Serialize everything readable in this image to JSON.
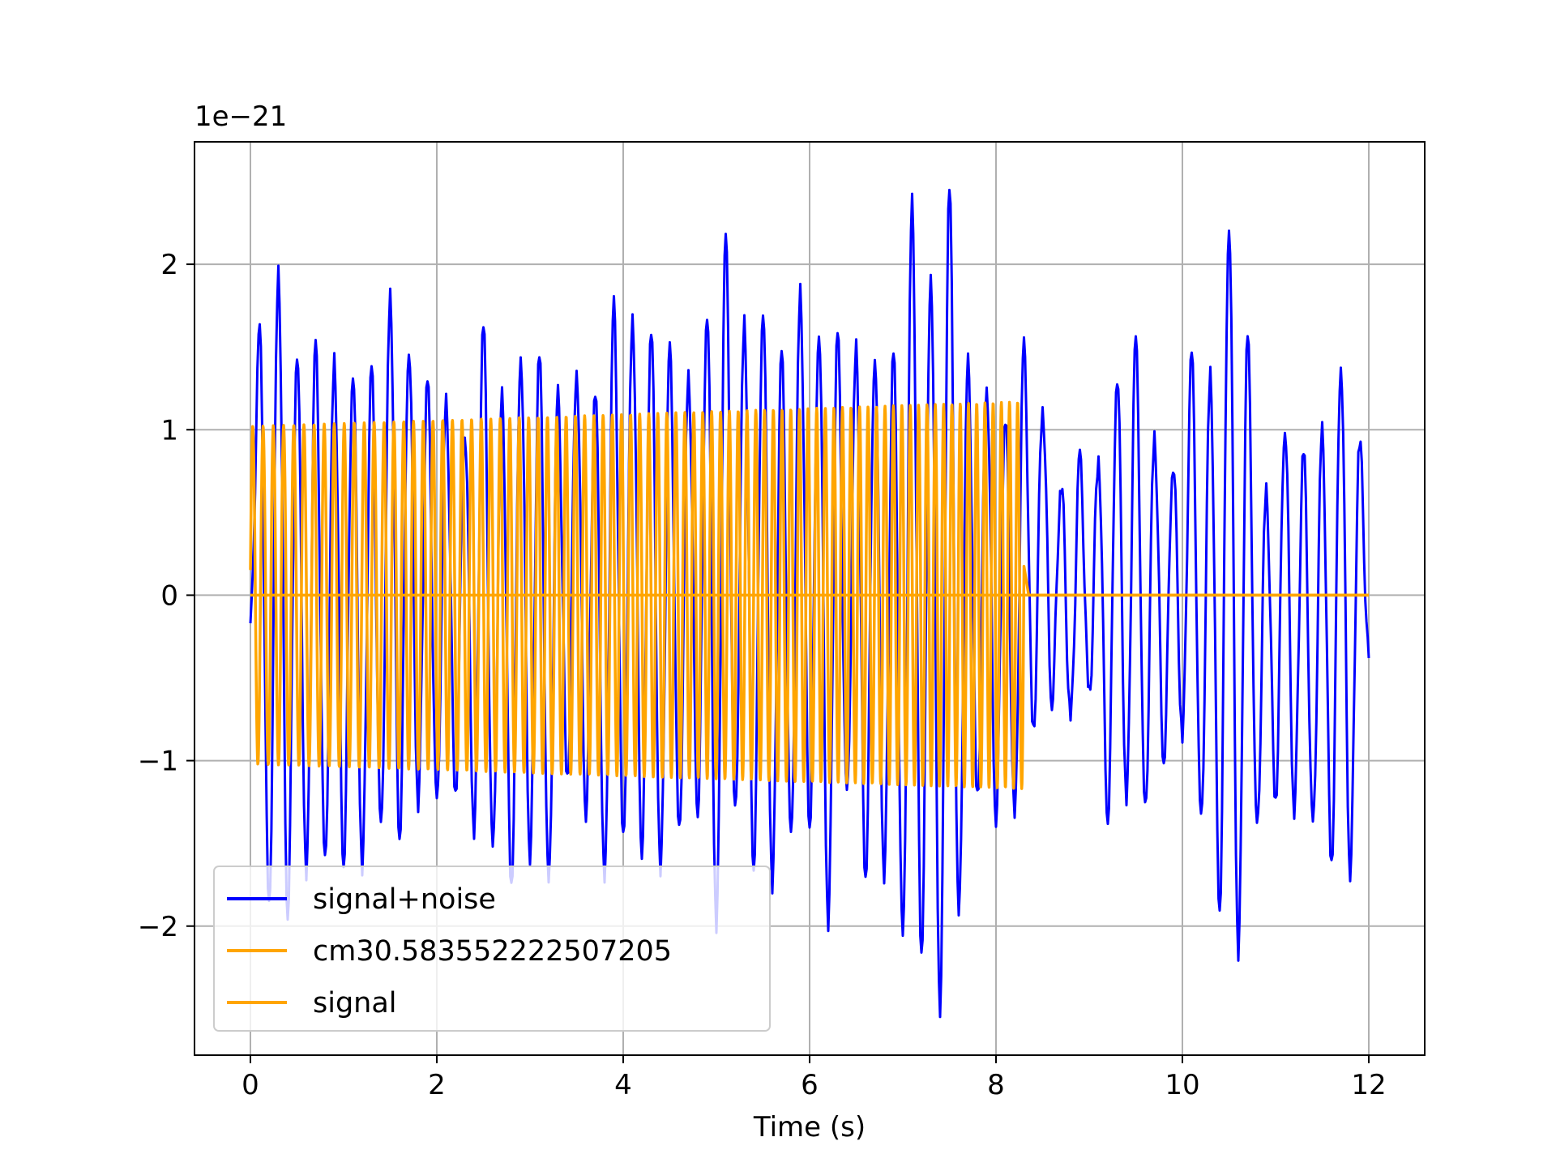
{
  "chart_data": {
    "type": "line",
    "title": "",
    "xlabel": "Time (s)",
    "ylabel": "",
    "offset_text": "1e−21",
    "y_scale_factor": 1e-21,
    "xlim": [
      -0.6,
      12.6
    ],
    "ylim": [
      -2.78,
      2.74
    ],
    "grid": true,
    "legend_position": "lower-left",
    "x_ticks": [
      0,
      2,
      4,
      6,
      8,
      10,
      12
    ],
    "x_tick_labels": [
      "0",
      "2",
      "4",
      "6",
      "8",
      "10",
      "12"
    ],
    "y_ticks": [
      2,
      1,
      0,
      -1,
      -2
    ],
    "y_tick_labels": [
      "2",
      "1",
      "0",
      "−1",
      "−2"
    ],
    "series": [
      {
        "name": "signal+noise",
        "color": "#0000ff",
        "x_range": [
          0,
          12
        ],
        "y_range": [
          -2.5,
          2.5
        ],
        "x": [
          0,
          0.1,
          0.2,
          0.3,
          0.4,
          0.5,
          0.6,
          0.7,
          0.8,
          0.9,
          1.0,
          1.1,
          1.2,
          1.3,
          1.4,
          1.5,
          1.6,
          1.7,
          1.8,
          1.9,
          2.0,
          2.1,
          2.2,
          2.3,
          2.4,
          2.5,
          2.6,
          2.7,
          2.8,
          2.9,
          3.0,
          3.1,
          3.2,
          3.3,
          3.4,
          3.5,
          3.6,
          3.7,
          3.8,
          3.9,
          4.0,
          4.1,
          4.2,
          4.3,
          4.4,
          4.5,
          4.6,
          4.7,
          4.8,
          4.9,
          5.0,
          5.1,
          5.2,
          5.3,
          5.4,
          5.5,
          5.6,
          5.7,
          5.8,
          5.9,
          6.0,
          6.1,
          6.2,
          6.3,
          6.4,
          6.5,
          6.6,
          6.7,
          6.8,
          6.9,
          7.0,
          7.1,
          7.2,
          7.3,
          7.4,
          7.5,
          7.6,
          7.7,
          7.8,
          7.9,
          8.0,
          8.1,
          8.2,
          8.3,
          8.4,
          8.5,
          8.6,
          8.7,
          8.8,
          8.9,
          9.0,
          9.1,
          9.2,
          9.3,
          9.4,
          9.5,
          9.6,
          9.7,
          9.8,
          9.9,
          10.0,
          10.1,
          10.2,
          10.3,
          10.4,
          10.5,
          10.6,
          10.7,
          10.8,
          10.9,
          11.0,
          11.1,
          11.2,
          11.3,
          11.4,
          11.5,
          11.6,
          11.7,
          11.8,
          11.9,
          12.0
        ],
        "values": [
          -0.17,
          1.57,
          -1.92,
          1.98,
          -1.9,
          1.5,
          -1.7,
          1.49,
          -1.65,
          1.43,
          -1.6,
          1.39,
          -1.65,
          1.35,
          -1.45,
          1.8,
          -1.45,
          1.53,
          -1.25,
          1.28,
          -1.3,
          1.15,
          -1.18,
          1.02,
          -1.4,
          1.63,
          -1.58,
          1.18,
          -1.76,
          1.49,
          -1.55,
          1.47,
          -1.78,
          1.19,
          -1.12,
          1.39,
          -1.29,
          1.25,
          -1.76,
          1.73,
          -1.49,
          1.71,
          -1.52,
          1.64,
          -1.7,
          1.46,
          -1.46,
          1.35,
          -1.28,
          1.74,
          -2.02,
          2.13,
          -1.35,
          1.66,
          -1.62,
          1.77,
          -1.76,
          1.44,
          -1.51,
          1.83,
          -1.38,
          1.64,
          -1.97,
          1.57,
          -1.25,
          1.48,
          -1.7,
          1.49,
          -1.67,
          1.47,
          -2.12,
          2.35,
          -2.18,
          1.99,
          -2.47,
          2.48,
          -1.98,
          1.38,
          -1.22,
          1.29,
          -1.32,
          1.08,
          -1.37,
          1.48,
          -0.84,
          1.15,
          -0.62,
          0.68,
          -0.76,
          0.81,
          -0.62,
          0.83,
          -1.32,
          1.35,
          -1.25,
          1.51,
          -1.33,
          0.96,
          -0.97,
          0.82,
          -0.85,
          1.43,
          -1.4,
          1.33,
          -1.88,
          2.28,
          -2.15,
          1.55,
          -1.45,
          0.61,
          -1.22,
          1.05,
          -1.28,
          0.86,
          -1.43,
          0.97,
          -1.62,
          1.43,
          -1.65,
          0.92,
          -0.38
        ]
      },
      {
        "name": "cm30.583552222507205",
        "color": "#ffa500",
        "x": [
          0,
          8.3,
          12
        ],
        "values": [
          0,
          0,
          0
        ]
      },
      {
        "name": "signal",
        "color": "#ffa500",
        "x_range": [
          0,
          12
        ],
        "chirp": {
          "start_time": 0,
          "end_time": 8.3,
          "amplitude_start": 1.02,
          "amplitude_end": 1.17,
          "cycles": 85,
          "value_after_end": 0
        }
      }
    ]
  }
}
